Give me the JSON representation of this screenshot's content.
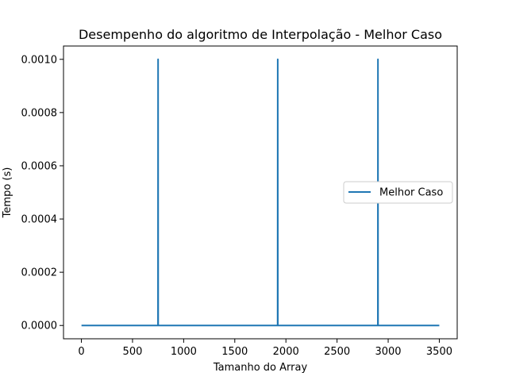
{
  "chart_data": {
    "type": "line",
    "title": "Desempenho do algoritmo de Interpolação - Melhor Caso",
    "xlabel": "Tamanho do Array",
    "ylabel": "Tempo (s)",
    "xlim": [
      -175,
      3675
    ],
    "ylim": [
      -5e-05,
      0.00105
    ],
    "x_ticks": [
      0,
      500,
      1000,
      1500,
      2000,
      2500,
      3000,
      3500
    ],
    "x_tick_labels": [
      "0",
      "500",
      "1000",
      "1500",
      "2000",
      "2500",
      "3000",
      "3500"
    ],
    "y_ticks": [
      0,
      0.0002,
      0.0004,
      0.0006,
      0.0008,
      0.001
    ],
    "y_tick_labels": [
      "0.0000",
      "0.0002",
      "0.0004",
      "0.0006",
      "0.0008",
      "0.0010"
    ],
    "grid": false,
    "legend_position": "center-right",
    "series": [
      {
        "name": "Melhor Caso",
        "color": "#1f77b4",
        "x": [
          1,
          749,
          750,
          751,
          1919,
          1920,
          1921,
          2899,
          2900,
          2901,
          3500
        ],
        "y": [
          0,
          0,
          0.001,
          0,
          0,
          0.001,
          0,
          0,
          0.001,
          0,
          0
        ]
      }
    ]
  }
}
